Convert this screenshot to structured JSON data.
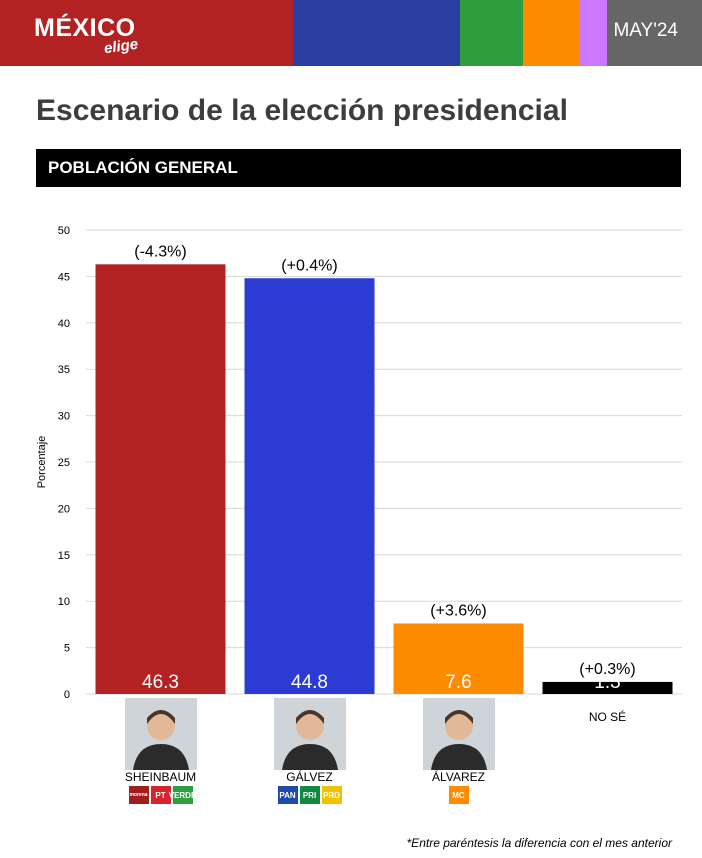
{
  "header": {
    "logo_main": "MÉXICO",
    "logo_sub": "elige",
    "month": "MAY'24",
    "colors": [
      "#b22222",
      "#2b3fa3",
      "#2e9e3f",
      "#ff8c00",
      "#cc77ff",
      "#666666"
    ]
  },
  "title": "Escenario de la elección presidencial",
  "subtitle": "POBLACIÓN GENERAL",
  "footnote": "*Entre paréntesis la diferencia con el mes anterior",
  "candidates": [
    {
      "name": "SHEINBAUM",
      "parties": [
        "morena",
        "PT",
        "VERDE"
      ],
      "photo_icon": "candidate-photo"
    },
    {
      "name": "GÁLVEZ",
      "parties": [
        "PAN",
        "PRI",
        "PRD"
      ],
      "photo_icon": "candidate-photo"
    },
    {
      "name": "ÁLVAREZ",
      "parties": [
        "MC"
      ],
      "photo_icon": "candidate-photo"
    },
    {
      "name": "NO SÉ",
      "parties": [],
      "photo_icon": ""
    }
  ],
  "chart_data": {
    "type": "bar",
    "categories": [
      "SHEINBAUM",
      "GÁLVEZ",
      "ÁLVAREZ",
      "NO SÉ"
    ],
    "values": [
      46.3,
      44.8,
      7.6,
      1.3
    ],
    "changes": [
      "(-4.3%)",
      "(+0.4%)",
      "(+3.6%)",
      "(+0.3%)"
    ],
    "colors": [
      "#b22222",
      "#2b3bd4",
      "#ff8c00",
      "#000000"
    ],
    "ylabel": "Porcentaje",
    "ylim": [
      0,
      50
    ],
    "yticks": [
      0,
      5,
      10,
      15,
      20,
      25,
      30,
      35,
      40,
      45,
      50
    ],
    "grid": true
  }
}
